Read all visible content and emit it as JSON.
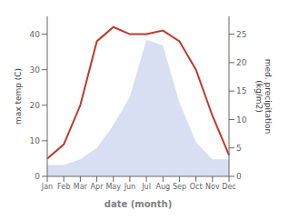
{
  "chart_data": {
    "type": "line",
    "categories": [
      "Jan",
      "Feb",
      "Mar",
      "Apr",
      "May",
      "Jun",
      "Jul",
      "Aug",
      "Sep",
      "Oct",
      "Nov",
      "Dec"
    ],
    "series": [
      {
        "type": "area",
        "color": "#b8c4e8",
        "axis": "y2",
        "values": [
          2,
          2,
          3,
          5,
          9,
          14,
          24,
          23,
          13,
          6,
          3,
          3
        ]
      },
      {
        "type": "line",
        "color": "#c0392b",
        "values": [
          5,
          9,
          20,
          38,
          42,
          40,
          40,
          41,
          38,
          30,
          17,
          6
        ]
      }
    ],
    "xlabel": "date (month)",
    "ylabel": "max temp (C)",
    "y2label": "med. precipitation\n(kg/m2)",
    "ylim": [
      0,
      45
    ],
    "yticks": [
      0,
      10,
      20,
      30,
      40
    ],
    "y2lim": [
      0,
      28.125
    ],
    "y2ticks": [
      0,
      5,
      10,
      15,
      20,
      25
    ],
    "grid": false
  }
}
